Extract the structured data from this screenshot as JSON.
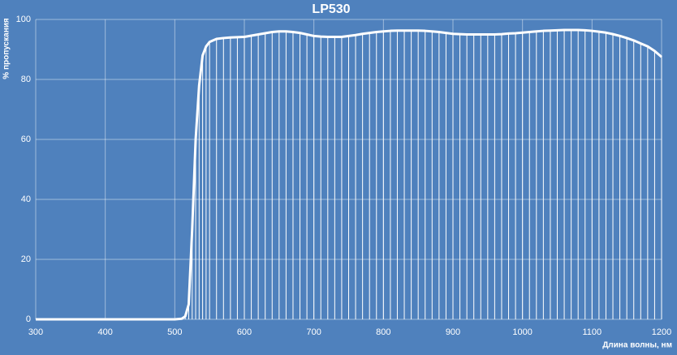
{
  "chart_data": {
    "type": "line",
    "title": "LP530",
    "xlabel": "Длина волны, нм",
    "ylabel": "% пропускания",
    "x": [
      300,
      310,
      320,
      330,
      340,
      350,
      360,
      370,
      380,
      390,
      400,
      410,
      420,
      430,
      440,
      450,
      460,
      470,
      480,
      490,
      500,
      510,
      515,
      520,
      525,
      530,
      535,
      540,
      545,
      550,
      560,
      570,
      580,
      590,
      600,
      610,
      620,
      630,
      640,
      650,
      660,
      670,
      680,
      690,
      700,
      710,
      720,
      730,
      740,
      750,
      760,
      770,
      780,
      790,
      800,
      810,
      820,
      830,
      840,
      850,
      860,
      870,
      880,
      890,
      900,
      910,
      920,
      930,
      940,
      950,
      960,
      970,
      980,
      990,
      1000,
      1010,
      1020,
      1030,
      1040,
      1050,
      1060,
      1070,
      1080,
      1090,
      1100,
      1110,
      1120,
      1130,
      1140,
      1150,
      1160,
      1170,
      1180,
      1190,
      1200
    ],
    "series": [
      {
        "name": "LP530",
        "color": "#ffffff",
        "values": [
          0,
          0,
          0,
          0,
          0,
          0,
          0,
          0,
          0,
          0,
          0,
          0,
          0,
          0,
          0,
          0,
          0,
          0,
          0,
          0,
          0,
          0.2,
          1,
          5,
          30,
          60,
          78,
          88,
          91,
          92.5,
          93.5,
          93.8,
          94,
          94.1,
          94.2,
          94.6,
          95,
          95.4,
          95.8,
          96,
          96,
          95.8,
          95.5,
          95,
          94.5,
          94.3,
          94.2,
          94.2,
          94.2,
          94.5,
          94.8,
          95.2,
          95.5,
          95.8,
          96,
          96.2,
          96.3,
          96.3,
          96.3,
          96.3,
          96.2,
          96,
          95.8,
          95.5,
          95.2,
          95.1,
          95,
          95,
          95,
          95,
          95,
          95.1,
          95.3,
          95.4,
          95.6,
          95.8,
          96,
          96.2,
          96.3,
          96.4,
          96.5,
          96.5,
          96.5,
          96.4,
          96.2,
          95.9,
          95.6,
          95.1,
          94.5,
          93.8,
          93,
          92,
          91,
          89.5,
          87.5
        ]
      }
    ],
    "xlim": [
      300,
      1200
    ],
    "ylim": [
      0,
      100
    ],
    "xticks": [
      300,
      400,
      500,
      600,
      700,
      800,
      900,
      1000,
      1100,
      1200
    ],
    "yticks": [
      0,
      20,
      40,
      60,
      80,
      100
    ],
    "grid": true
  }
}
